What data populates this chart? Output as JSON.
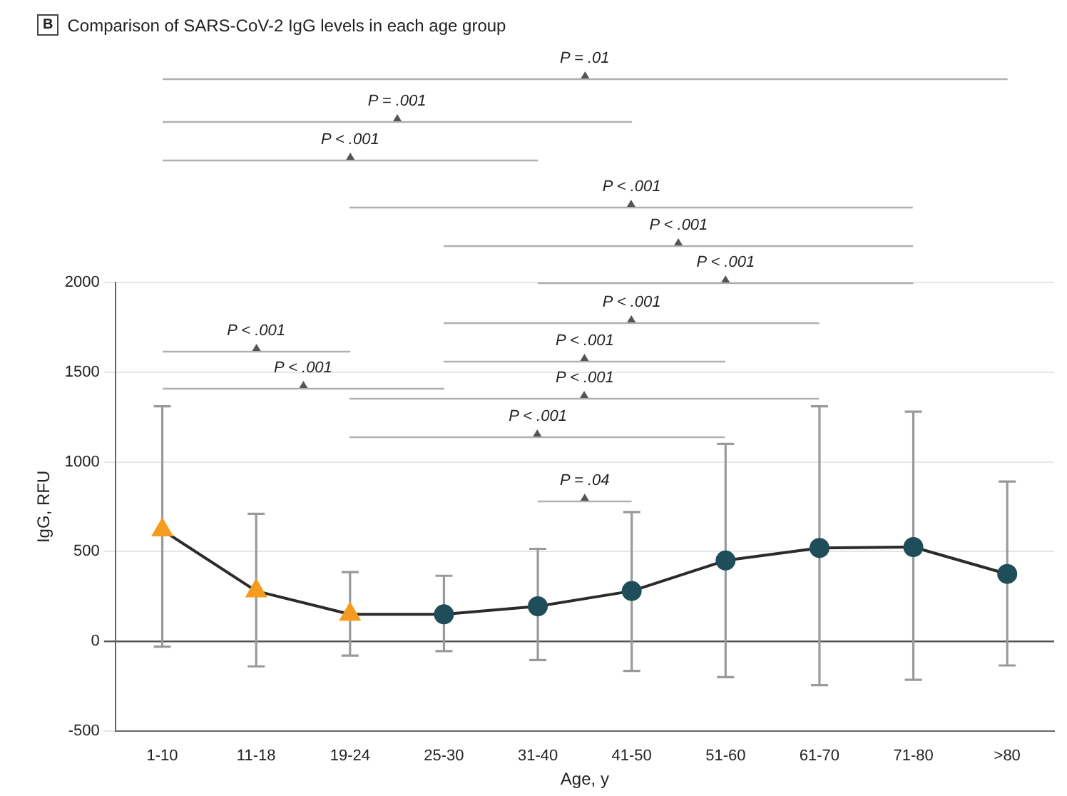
{
  "chart_data": {
    "type": "line",
    "title": "Comparison of SARS-CoV-2 IgG levels in each age group",
    "xlabel": "Age, y",
    "ylabel": "IgG, RFU",
    "categories": [
      "1-10",
      "11-18",
      "19-24",
      "25-30",
      "31-40",
      "41-50",
      "51-60",
      "61-70",
      "71-80",
      ">80"
    ],
    "series": [
      {
        "color": "#2b2b2b",
        "marker": "none",
        "values": [
          620,
          280,
          150,
          150,
          195,
          280,
          450,
          520,
          525,
          375
        ],
        "errors": [
          [
            -30,
            1310
          ],
          [
            -140,
            710
          ],
          [
            -80,
            385
          ],
          [
            -55,
            365
          ],
          [
            -105,
            515
          ],
          [
            -165,
            720
          ],
          [
            -200,
            1100
          ],
          [
            -245,
            1310
          ],
          [
            -215,
            1280
          ],
          [
            -135,
            890
          ]
        ]
      },
      {
        "type": "scatter",
        "color": "#f39c1f",
        "marker": "triangle",
        "values": [
          620,
          280,
          150,
          null,
          null,
          null,
          null,
          null,
          null,
          null
        ]
      },
      {
        "type": "scatter",
        "color": "#1f4e5a",
        "marker": "circle",
        "values": [
          null,
          null,
          null,
          150,
          195,
          280,
          450,
          520,
          525,
          375
        ]
      }
    ],
    "ylim": [
      -500,
      2000
    ],
    "yticks": [
      -500,
      0,
      500,
      1000,
      1500,
      2000
    ],
    "grid": "y",
    "legend": false,
    "annotations": [
      "B",
      "P = .01",
      "P = .001",
      "P < .001",
      "P < .001",
      "P < .001",
      "P < .001",
      "P < .001",
      "P < .001",
      "P < .001",
      "P < .001",
      "P = .04",
      "P < .001",
      "P < .001"
    ]
  }
}
